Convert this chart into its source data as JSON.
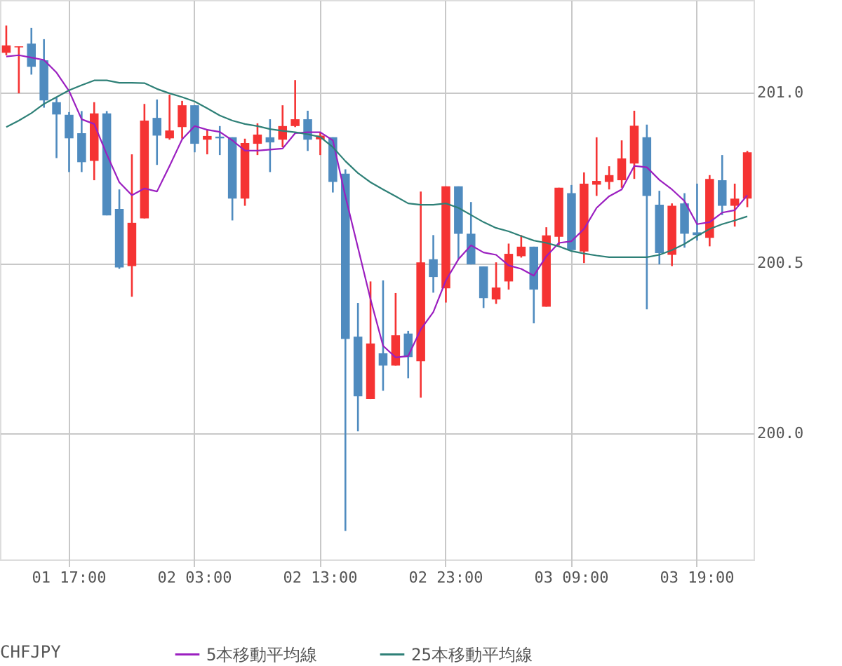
{
  "chart_data": {
    "type": "candlestick",
    "categories": [
      null,
      null,
      null,
      null,
      null,
      "01 17:00",
      null,
      null,
      null,
      null,
      null,
      null,
      null,
      null,
      null,
      "02 03:00",
      null,
      null,
      null,
      null,
      null,
      null,
      null,
      null,
      null,
      "02 13:00",
      null,
      null,
      null,
      null,
      null,
      null,
      null,
      null,
      null,
      "02 23:00",
      null,
      null,
      null,
      null,
      null,
      null,
      null,
      null,
      null,
      "03 09:00",
      null,
      null,
      null,
      null,
      null,
      null,
      null,
      null,
      null,
      "03 19:00",
      null,
      null,
      null,
      null
    ],
    "ohlc": [
      [
        201.117,
        201.197,
        201.11,
        201.139
      ],
      [
        201.133,
        201.136,
        200.998,
        201.136
      ],
      [
        201.144,
        201.19,
        201.053,
        201.076
      ],
      [
        201.095,
        201.157,
        200.956,
        200.977
      ],
      [
        200.972,
        200.988,
        200.808,
        200.936
      ],
      [
        200.935,
        200.943,
        200.767,
        200.866
      ],
      [
        200.881,
        200.946,
        200.767,
        200.796
      ],
      [
        200.8,
        200.972,
        200.743,
        200.939
      ],
      [
        200.939,
        200.946,
        200.64,
        200.64
      ],
      [
        200.659,
        200.716,
        200.483,
        200.487
      ],
      [
        200.491,
        200.819,
        200.401,
        200.618
      ],
      [
        200.631,
        200.967,
        200.631,
        200.918
      ],
      [
        200.926,
        200.98,
        200.788,
        200.874
      ],
      [
        200.866,
        200.994,
        200.862,
        200.889
      ],
      [
        200.899,
        200.976,
        200.865,
        200.963
      ],
      [
        200.963,
        200.963,
        200.825,
        200.85
      ],
      [
        200.862,
        200.893,
        200.819,
        200.873
      ],
      [
        200.871,
        200.902,
        200.817,
        200.866
      ],
      [
        200.869,
        200.869,
        200.625,
        200.689
      ],
      [
        200.689,
        200.865,
        200.668,
        200.852
      ],
      [
        200.85,
        200.91,
        200.817,
        200.877
      ],
      [
        200.869,
        200.922,
        200.767,
        200.854
      ],
      [
        200.862,
        200.963,
        200.84,
        200.902
      ],
      [
        200.902,
        201.037,
        200.899,
        200.922
      ],
      [
        200.922,
        200.947,
        200.829,
        200.862
      ],
      [
        200.863,
        200.885,
        200.817,
        200.874
      ],
      [
        200.869,
        200.869,
        200.707,
        200.738
      ],
      [
        200.762,
        200.775,
        199.714,
        200.277
      ],
      [
        200.284,
        200.383,
        200.006,
        200.109
      ],
      [
        200.101,
        200.446,
        200.101,
        200.264
      ],
      [
        200.235,
        200.449,
        200.125,
        200.199
      ],
      [
        200.199,
        200.412,
        200.199,
        200.288
      ],
      [
        200.293,
        200.301,
        200.162,
        200.224
      ],
      [
        200.212,
        200.71,
        200.105,
        200.502
      ],
      [
        200.511,
        200.582,
        200.413,
        200.459
      ],
      [
        200.426,
        200.725,
        200.384,
        200.725
      ],
      [
        200.725,
        200.725,
        200.511,
        200.586
      ],
      [
        200.586,
        200.679,
        200.496,
        200.496
      ],
      [
        200.49,
        200.49,
        200.368,
        200.397
      ],
      [
        200.393,
        200.502,
        200.38,
        200.428
      ],
      [
        200.446,
        200.557,
        200.422,
        200.527
      ],
      [
        200.52,
        200.582,
        200.516,
        200.548
      ],
      [
        200.548,
        200.548,
        200.323,
        200.422
      ],
      [
        200.372,
        200.605,
        200.372,
        200.581
      ],
      [
        200.577,
        200.721,
        200.552,
        200.721
      ],
      [
        200.705,
        200.729,
        200.538,
        200.538
      ],
      [
        200.534,
        200.766,
        200.5,
        200.733
      ],
      [
        200.73,
        200.869,
        200.697,
        200.741
      ],
      [
        200.738,
        200.784,
        200.716,
        200.758
      ],
      [
        200.743,
        200.86,
        200.721,
        200.807
      ],
      [
        200.792,
        200.947,
        200.747,
        200.903
      ],
      [
        200.869,
        200.906,
        200.364,
        200.697
      ],
      [
        200.671,
        200.712,
        200.496,
        200.529
      ],
      [
        200.524,
        200.675,
        200.491,
        200.668
      ],
      [
        200.675,
        200.705,
        200.545,
        200.586
      ],
      [
        200.59,
        200.733,
        200.566,
        200.582
      ],
      [
        200.574,
        200.758,
        200.549,
        200.747
      ],
      [
        200.743,
        200.817,
        200.641,
        200.668
      ],
      [
        200.668,
        200.733,
        200.607,
        200.689
      ],
      [
        200.689,
        200.829,
        200.664,
        200.825
      ]
    ],
    "colors": [
      "#f53333",
      "#f53333",
      "#4f8bbf",
      "#4f8bbf",
      "#4f8bbf",
      "#4f8bbf",
      "#4f8bbf",
      "#f53333",
      "#4f8bbf",
      "#4f8bbf",
      "#f53333",
      "#f53333",
      "#4f8bbf",
      "#f53333",
      "#f53333",
      "#4f8bbf",
      "#f53333",
      "#4f8bbf",
      "#4f8bbf",
      "#f53333",
      "#f53333",
      "#4f8bbf",
      "#f53333",
      "#f53333",
      "#4f8bbf",
      "#f53333",
      "#4f8bbf",
      "#4f8bbf",
      "#4f8bbf",
      "#f53333",
      "#4f8bbf",
      "#f53333",
      "#4f8bbf",
      "#f53333",
      "#4f8bbf",
      "#f53333",
      "#4f8bbf",
      "#4f8bbf",
      "#4f8bbf",
      "#f53333",
      "#f53333",
      "#f53333",
      "#4f8bbf",
      "#f53333",
      "#f53333",
      "#4f8bbf",
      "#f53333",
      "#f53333",
      "#f53333",
      "#f53333",
      "#f53333",
      "#4f8bbf",
      "#4f8bbf",
      "#f53333",
      "#4f8bbf",
      "#4f8bbf",
      "#f53333",
      "#4f8bbf",
      "#f53333",
      "#f53333"
    ],
    "series": [
      {
        "name": "5本移動平均線",
        "type": "line",
        "color": "#9b1fc0",
        "values": [
          201.106,
          201.11,
          201.103,
          201.096,
          201.059,
          201.005,
          200.922,
          200.908,
          200.819,
          200.737,
          200.699,
          200.719,
          200.71,
          200.785,
          200.863,
          200.902,
          200.891,
          200.885,
          200.86,
          200.83,
          200.83,
          200.833,
          200.836,
          200.881,
          200.884,
          200.884,
          200.86,
          200.696,
          200.545,
          200.394,
          200.257,
          200.223,
          200.227,
          200.305,
          200.356,
          200.449,
          200.511,
          200.552,
          200.531,
          200.524,
          200.493,
          200.483,
          200.463,
          200.52,
          200.559,
          200.564,
          200.6,
          200.662,
          200.696,
          200.716,
          200.785,
          200.781,
          200.744,
          200.716,
          200.682,
          200.614,
          200.62,
          200.648,
          200.655,
          200.699
        ]
      },
      {
        "name": "25本移動平均線",
        "type": "line",
        "color": "#2e8077",
        "values": [
          200.899,
          200.918,
          200.94,
          200.967,
          200.987,
          201.007,
          201.022,
          201.036,
          201.036,
          201.029,
          201.029,
          201.028,
          201.011,
          200.998,
          200.987,
          200.974,
          200.954,
          200.933,
          200.918,
          200.908,
          200.902,
          200.893,
          200.888,
          200.884,
          200.878,
          200.87,
          200.84,
          200.799,
          200.764,
          200.737,
          200.716,
          200.696,
          200.675,
          200.671,
          200.671,
          200.675,
          200.662,
          200.641,
          200.62,
          200.603,
          200.593,
          200.579,
          200.566,
          200.559,
          200.549,
          200.535,
          200.528,
          200.522,
          200.517,
          200.517,
          200.517,
          200.517,
          200.524,
          200.538,
          200.556,
          200.579,
          200.6,
          200.614,
          200.625,
          200.637
        ]
      }
    ],
    "legend_title": "CHFJPY",
    "legend": "bottom",
    "ylim": [
      199.63,
      201.272
    ],
    "yticks": [
      {
        "value": 200,
        "label": "200.0"
      },
      {
        "value": 200.5,
        "label": "200.5"
      },
      {
        "value": 201,
        "label": "201.0"
      }
    ],
    "grid": true
  }
}
